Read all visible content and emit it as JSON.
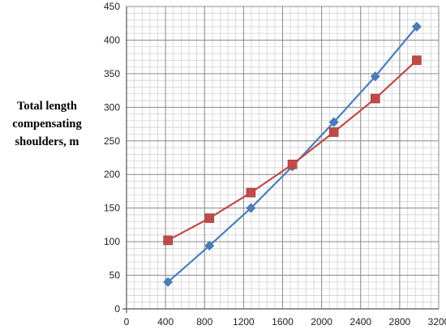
{
  "chart_data": {
    "type": "line",
    "ylabel_lines": [
      "Total length",
      "compensating",
      "shoulders, m"
    ],
    "xlim": [
      0,
      3200
    ],
    "ylim": [
      0,
      450
    ],
    "x_ticks": [
      0,
      400,
      800,
      1200,
      1600,
      2000,
      2400,
      2800,
      3200
    ],
    "y_ticks": [
      0,
      50,
      100,
      150,
      200,
      250,
      300,
      350,
      400,
      450
    ],
    "grid": true,
    "x": [
      425,
      850,
      1275,
      1700,
      2125,
      2550,
      2975
    ],
    "series": [
      {
        "color": "#4a7ebb",
        "marker": "diamond",
        "values": [
          40,
          94,
          150,
          212,
          278,
          346,
          420
        ]
      },
      {
        "color": "#be4b48",
        "marker": "square",
        "values": [
          102,
          135,
          173,
          215,
          263,
          313,
          370
        ]
      }
    ]
  }
}
